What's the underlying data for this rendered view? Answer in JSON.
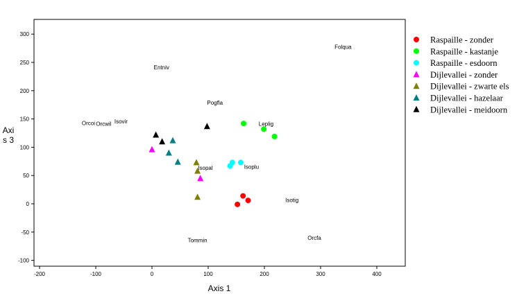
{
  "chart_data": {
    "type": "scatter",
    "title": "",
    "xlabel": "Axis 1",
    "ylabel_lines": [
      "Axi",
      "s 3"
    ],
    "xlim": [
      -210,
      450
    ],
    "ylim": [
      -110,
      330
    ],
    "xticks": [
      -200,
      -100,
      0,
      100,
      200,
      300,
      400
    ],
    "yticks": [
      -100,
      -50,
      0,
      50,
      100,
      150,
      200,
      250,
      300
    ],
    "grid": false,
    "legend_position": "right",
    "series": [
      {
        "name": "Raspaille - zonder",
        "marker": "circle",
        "color": "#ff0000",
        "points": [
          [
            152,
            -1
          ],
          [
            162,
            14
          ],
          [
            171,
            6
          ]
        ]
      },
      {
        "name": "Raspaille - kastanje",
        "marker": "circle",
        "color": "#00ff00",
        "points": [
          [
            163,
            142
          ],
          [
            199,
            132
          ],
          [
            218,
            119
          ]
        ]
      },
      {
        "name": "Raspaille - esdoorn",
        "marker": "circle",
        "color": "#00ffff",
        "points": [
          [
            139,
            67
          ],
          [
            143,
            73
          ],
          [
            158,
            73
          ]
        ]
      },
      {
        "name": "Dijlevallei - zonder",
        "marker": "triangle",
        "color": "#ff00ff",
        "points": [
          [
            0,
            96
          ],
          [
            86,
            45
          ]
        ]
      },
      {
        "name": "Dijlevallei - zwarte els",
        "marker": "triangle",
        "color": "#808000",
        "points": [
          [
            79,
            73
          ],
          [
            81,
            58
          ],
          [
            81,
            12
          ]
        ]
      },
      {
        "name": "Dijlevallei - hazelaar",
        "marker": "triangle",
        "color": "#008080",
        "points": [
          [
            37,
            112
          ],
          [
            30,
            90
          ],
          [
            46,
            74
          ]
        ]
      },
      {
        "name": "Dijlevallei - meidoorn",
        "marker": "triangle",
        "color": "#000000",
        "points": [
          [
            7,
            122
          ],
          [
            18,
            110
          ],
          [
            98,
            137
          ]
        ]
      }
    ],
    "annotations": [
      {
        "text": "Folqua",
        "x": 340,
        "y": 274
      },
      {
        "text": "Entniv",
        "x": 17,
        "y": 238
      },
      {
        "text": "Pogfla",
        "x": 112,
        "y": 175
      },
      {
        "text": "Orcoi",
        "x": -113,
        "y": 139
      },
      {
        "text": "Orcwil",
        "x": -86,
        "y": 138
      },
      {
        "text": "Isovir",
        "x": -55,
        "y": 142
      },
      {
        "text": "Leplig",
        "x": 203,
        "y": 138
      },
      {
        "text": "Isopal",
        "x": 95,
        "y": 60
      },
      {
        "text": "Isoplu",
        "x": 177,
        "y": 62
      },
      {
        "text": "Isotig",
        "x": 249,
        "y": 3
      },
      {
        "text": "Tommin",
        "x": 81,
        "y": -68
      },
      {
        "text": "Orcfa",
        "x": 289,
        "y": -64
      }
    ]
  }
}
